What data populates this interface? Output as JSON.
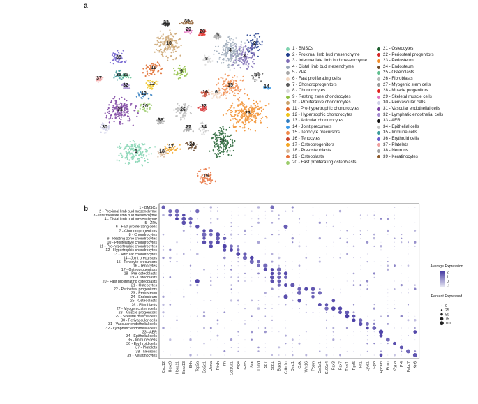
{
  "panels": {
    "a": "a",
    "b": "b"
  },
  "clusters": [
    {
      "id": "1",
      "label": "1 - BMSCs",
      "color": "#7fd3b0"
    },
    {
      "id": "2",
      "label": "2 - Proximal limb bud mesenchyme",
      "color": "#1f3b8c"
    },
    {
      "id": "3",
      "label": "3 - Intermediate limb bud mesenchyme",
      "color": "#7c6bb5"
    },
    {
      "id": "4",
      "label": "4 - Distal limb bud mesenchyme",
      "color": "#9aa8b8"
    },
    {
      "id": "5",
      "label": "5 - ZPA",
      "color": "#a6a6a6"
    },
    {
      "id": "6",
      "label": "6 - Fast proliferating cells",
      "color": "#f2d6c0"
    },
    {
      "id": "7",
      "label": "7 - Chondroprogenitors",
      "color": "#5b5b5b"
    },
    {
      "id": "8",
      "label": "8 - Chondrocytes",
      "color": "#d9d9d9"
    },
    {
      "id": "9",
      "label": "9 - Resting zone chondrocytes",
      "color": "#8ebf3f"
    },
    {
      "id": "10",
      "label": "10 - Proliferative chondrocytes",
      "color": "#c9a16b"
    },
    {
      "id": "11",
      "label": "11 - Pre-hypertrophic chondrocytes",
      "color": "#e06a2b"
    },
    {
      "id": "12",
      "label": "12 - Hypertrophic chondrocytes",
      "color": "#f0c419"
    },
    {
      "id": "13",
      "label": "13 - Articular chondrocytes",
      "color": "#2e7bbf"
    },
    {
      "id": "14",
      "label": "14 - Joint precursors",
      "color": "#3d9be9"
    },
    {
      "id": "15",
      "label": "15 - Tenocyte precursors",
      "color": "#f08a4b"
    },
    {
      "id": "16",
      "label": "16 - Tenocytes",
      "color": "#c7432b"
    },
    {
      "id": "17",
      "label": "17 - Osteoprogenitors",
      "color": "#f5a623"
    },
    {
      "id": "18",
      "label": "18 - Pre-osteoblasts",
      "color": "#d8b89a"
    },
    {
      "id": "19",
      "label": "19 - Osteoblasts",
      "color": "#e8703a"
    },
    {
      "id": "20",
      "label": "20 - Fast proliferating osteoblasts",
      "color": "#9ccc6b"
    },
    {
      "id": "21",
      "label": "21 - Osteocytes",
      "color": "#1e5f2e"
    },
    {
      "id": "22",
      "label": "22 - Periosteal progenitors",
      "color": "#d62728"
    },
    {
      "id": "23",
      "label": "23 - Periosteum",
      "color": "#f28c28"
    },
    {
      "id": "24",
      "label": "24 - Endosteum",
      "color": "#6b4a2e"
    },
    {
      "id": "25",
      "label": "25 - Osteoclasts",
      "color": "#5fbf8f"
    },
    {
      "id": "26",
      "label": "26 - Fibroblasts",
      "color": "#b8b8b8"
    },
    {
      "id": "27",
      "label": "27 - Myogenic stem cells",
      "color": "#9a9a9a"
    },
    {
      "id": "28",
      "label": "28 - Muscle progenitors",
      "color": "#e0201b"
    },
    {
      "id": "29",
      "label": "29 - Skeletal muscle cells",
      "color": "#e377c2"
    },
    {
      "id": "30",
      "label": "30 - Perivascular cells",
      "color": "#cfcfe8"
    },
    {
      "id": "31",
      "label": "31 - Vascular endothelial cells",
      "color": "#7a3fa0"
    },
    {
      "id": "32",
      "label": "32 - Lymphatic endothelial cells",
      "color": "#a58bd1"
    },
    {
      "id": "33",
      "label": "33 - AER",
      "color": "#111111"
    },
    {
      "id": "34",
      "label": "34 - Epithelial cells",
      "color": "#c8c8c8"
    },
    {
      "id": "35",
      "label": "35 - Immune cells",
      "color": "#3a9b9b"
    },
    {
      "id": "36",
      "label": "36 - Erythroid cells",
      "color": "#6a5acd"
    },
    {
      "id": "37",
      "label": "37 - Platelets",
      "color": "#f0a0a0"
    },
    {
      "id": "38",
      "label": "38 - Neurons",
      "color": "#a0a0a0"
    },
    {
      "id": "39",
      "label": "39 - Keratinocytes",
      "color": "#8b5a2b"
    }
  ],
  "umap_labels": [
    "1",
    "2",
    "3",
    "4",
    "5",
    "6",
    "7",
    "8",
    "9",
    "10",
    "11",
    "12",
    "13",
    "14",
    "15",
    "16",
    "17",
    "18",
    "19",
    "20",
    "21",
    "22",
    "23",
    "24",
    "25",
    "26",
    "27",
    "28",
    "29",
    "30",
    "31",
    "32",
    "33",
    "34",
    "35",
    "36",
    "37",
    "38",
    "39"
  ],
  "dotplot": {
    "rows": [
      "1 - BMSCs",
      "2 - Proximal limb bud mesenchyme",
      "3 - Intermediate limb bud mesenchyme",
      "4 - Distal limb bud mesenchyme",
      "5 - ZPA",
      "6 - Fast proliferating cells",
      "7 - Chondroprogenitors",
      "8 - Chondrocytes",
      "9 - Resting zone chondrocytes",
      "10 - Proliferative chondrocytes",
      "11 - Pre-hypertrophic chondrocytes",
      "12 - Hypertrophic chondrocytes",
      "13 - Articular chondrocytes",
      "14 - Joint precursors",
      "15 - Tenocyte precursors",
      "16 - Tenocytes",
      "17 - Osteoprogenitors",
      "18 - Pre-osteoblasts",
      "19 - Osteoblasts",
      "20 - Fast proliferating osteoblasts",
      "21 - Osteocytes",
      "22 - Periosteal progenitors",
      "23 - Periosteum",
      "24 - Endosteum",
      "25 - Osteoclasts",
      "26 - Fibroblasts",
      "27 - Myogenic stem cells",
      "28 - Muscle progenitors",
      "29 - Skeletal muscle cells",
      "30 - Perivascular cells",
      "31 - Vascular endothelial cells",
      "32 - Lymphatic endothelial cells",
      "33 - AER",
      "34 - Epithelial cells",
      "35 - Immune cells",
      "36 - Erythroid cells",
      "37 - Platelets",
      "38 - Neurons",
      "39 - Keratinocytes"
    ],
    "genes": [
      "Cxcl12",
      "Hoxa9",
      "Hoxa11",
      "Hoxa13",
      "Shh",
      "Top2a",
      "Col2a1",
      "Ucma",
      "Pthlh",
      "Ihh",
      "Col10a1",
      "Prg4",
      "Gdf5",
      "Scx",
      "Tnmd",
      "Sp7",
      "Spp1",
      "Bglap",
      "Cdkn1c",
      "Dmp1",
      "Ctsk",
      "Wnt16",
      "Postn",
      "Col3a1",
      "S100a4",
      "Pax3",
      "Pax7",
      "Tnnt1",
      "Rgs5",
      "Flt1",
      "Lyve1",
      "Fgf8",
      "Epcam",
      "Ptprc",
      "Gypa",
      "Pf4",
      "Fabp7",
      "Krt6"
    ],
    "legend": {
      "avg_title": "Average Expression",
      "avg_ticks": [
        "2",
        "1",
        "0",
        "-1"
      ],
      "pct_title": "Percent Expressed",
      "pct_values": [
        "0",
        "25",
        "50",
        "75",
        "100"
      ],
      "colors": {
        "high": "#4b3fa6",
        "low": "#e6e6f2"
      }
    }
  }
}
